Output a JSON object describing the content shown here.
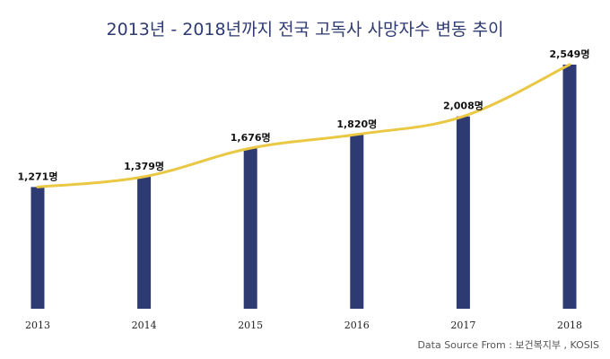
{
  "chart_data": {
    "type": "bar",
    "title": "2013년 - 2018년까지 전국 고독사 사망자수 변동 추이",
    "categories": [
      "2013",
      "2014",
      "2015",
      "2016",
      "2017",
      "2018"
    ],
    "values": [
      1271,
      1379,
      1676,
      1820,
      2008,
      2549
    ],
    "value_labels": [
      "1,271명",
      "1,379명",
      "1,676명",
      "1,820명",
      "2,008명",
      "2,549명"
    ],
    "series": [
      {
        "type": "bar",
        "color": "#2e3a72"
      },
      {
        "type": "line",
        "color": "#eac843"
      }
    ],
    "ylim": [
      0,
      2549
    ],
    "grid": false,
    "legend": "none"
  },
  "source": "Data Source From : 보건복지부 , KOSIS"
}
